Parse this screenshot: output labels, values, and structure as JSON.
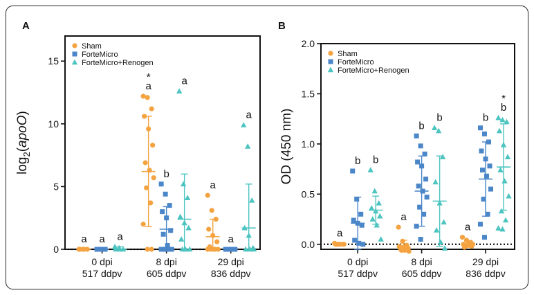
{
  "chart_data": [
    {
      "panel": "A",
      "type": "scatter",
      "ylabel_base": "log",
      "ylabel_sub": "2",
      "ylabel_gene": "apoO",
      "ylim": [
        0,
        17
      ],
      "yticks": [
        0,
        5,
        10,
        15
      ],
      "groups": [
        {
          "line1": "0 dpi",
          "line2": "517 ddpv"
        },
        {
          "line1": "8 dpi",
          "line2": "605 ddpv"
        },
        {
          "line1": "29 dpi",
          "line2": "836 ddpv"
        }
      ],
      "series": [
        {
          "name": "Sham",
          "marker": "circle",
          "color": "#F4A340",
          "groups": [
            {
              "mean": 0,
              "sd": 0,
              "label": "a",
              "star": false,
              "points": [
                0,
                0,
                0,
                0,
                0
              ]
            },
            {
              "mean": 6.2,
              "sd": 4.4,
              "label": "a",
              "star": true,
              "points": [
                12.2,
                12.1,
                11.2,
                10.6,
                9.6,
                8.3,
                6.9,
                6.3,
                5.7,
                4.9,
                3.7,
                2.0,
                0,
                0
              ]
            },
            {
              "mean": 1.0,
              "sd": 1.4,
              "label": "a",
              "star": false,
              "points": [
                4.3,
                3.1,
                2.4,
                1.6,
                1.1,
                0.6,
                0.2,
                0,
                0,
                0,
                0,
                0
              ]
            }
          ]
        },
        {
          "name": "ForteMicro",
          "marker": "square",
          "color": "#4A86C8",
          "groups": [
            {
              "mean": 0,
              "sd": 0,
              "label": "a",
              "star": false,
              "points": [
                0,
                0,
                0,
                0,
                0
              ]
            },
            {
              "mean": 1.6,
              "sd": 1.8,
              "label": "b",
              "star": false,
              "points": [
                5.2,
                4.4,
                3.5,
                3.0,
                2.5,
                1.5,
                1.2,
                0.3,
                0,
                0,
                0,
                0
              ]
            },
            {
              "mean": 0,
              "sd": 0,
              "label": "a",
              "star": false,
              "points": [
                0,
                0,
                0,
                0,
                0,
                0,
                0,
                0
              ]
            }
          ]
        },
        {
          "name": "ForteMicro+Renogen",
          "marker": "triangle",
          "color": "#4CC4C0",
          "groups": [
            {
              "mean": 0,
              "sd": 0.2,
              "label": "a",
              "star": false,
              "points": [
                0.2,
                0.1,
                0,
                0,
                0
              ]
            },
            {
              "mean": 2.4,
              "sd": 3.6,
              "label": "a",
              "star": false,
              "points": [
                12.6,
                5.2,
                4.1,
                2.6,
                2.1,
                1.7,
                0.8,
                0,
                0,
                0
              ]
            },
            {
              "mean": 1.7,
              "sd": 3.5,
              "label": "a",
              "star": false,
              "points": [
                9.9,
                8.2,
                3.9,
                1.7,
                1.1,
                0.1,
                0,
                0,
                0
              ]
            }
          ]
        }
      ]
    },
    {
      "panel": "B",
      "type": "scatter",
      "ylabel": "OD (450 nm)",
      "ylim": [
        -0.05,
        2.0
      ],
      "yticks": [
        0.0,
        0.5,
        1.0,
        1.5,
        2.0
      ],
      "groups": [
        {
          "line1": "0 dpi",
          "line2": "517 ddpv"
        },
        {
          "line1": "8 dpi",
          "line2": "605 ddpv"
        },
        {
          "line1": "29 dpi",
          "line2": "836 ddpv"
        }
      ],
      "series": [
        {
          "name": "Sham",
          "marker": "circle",
          "color": "#F4A340",
          "groups": [
            {
              "mean": 0.0,
              "sd": 0.01,
              "label": "a",
              "star": false,
              "points": [
                0.01,
                0.0,
                0.0,
                0.0,
                0.0,
                0.0,
                0.0
              ]
            },
            {
              "mean": -0.03,
              "sd": 0.07,
              "label": "a",
              "star": false,
              "points": [
                0.17,
                0.03,
                -0.01,
                -0.02,
                -0.03,
                -0.04,
                -0.05,
                -0.06,
                -0.07,
                -0.06,
                -0.05
              ]
            },
            {
              "mean": 0.0,
              "sd": 0.03,
              "label": "a",
              "star": false,
              "points": [
                0.07,
                0.04,
                0.02,
                0.0,
                -0.01,
                -0.02,
                -0.03,
                0.01,
                0.0
              ]
            }
          ]
        },
        {
          "name": "ForteMicro",
          "marker": "square",
          "color": "#4A86C8",
          "groups": [
            {
              "mean": 0.21,
              "sd": 0.26,
              "label": "b",
              "star": false,
              "points": [
                0.73,
                0.45,
                0.3,
                0.24,
                0.21,
                0.19,
                0.04,
                0.01,
                0.0
              ]
            },
            {
              "mean": 0.53,
              "sd": 0.35,
              "label": "b",
              "star": false,
              "points": [
                1.08,
                0.98,
                0.9,
                0.82,
                0.78,
                0.65,
                0.58,
                0.53,
                0.47,
                0.37,
                0.3,
                0.18,
                0.05
              ]
            },
            {
              "mean": 0.65,
              "sd": 0.37,
              "label": "b",
              "star": false,
              "points": [
                1.16,
                1.1,
                1.02,
                0.93,
                0.85,
                0.78,
                0.74,
                0.68,
                0.55,
                0.45,
                0.3,
                0.2,
                0.07
              ]
            }
          ]
        },
        {
          "name": "ForteMicro+Renogen",
          "marker": "triangle",
          "color": "#4CC4C0",
          "groups": [
            {
              "mean": 0.34,
              "sd": 0.14,
              "label": "b",
              "star": false,
              "points": [
                0.74,
                0.53,
                0.41,
                0.36,
                0.33,
                0.28,
                0.25,
                0.19,
                0.05
              ]
            },
            {
              "mean": 0.43,
              "sd": 0.45,
              "label": "b",
              "star": false,
              "points": [
                1.16,
                1.13,
                0.87,
                0.62,
                0.41,
                0.22,
                0.14,
                0.02,
                -0.04
              ]
            },
            {
              "mean": 0.77,
              "sd": 0.43,
              "label": "b",
              "star": true,
              "points": [
                1.26,
                1.24,
                1.22,
                1.13,
                0.99,
                0.87,
                0.74,
                0.63,
                0.48,
                0.33,
                0.24,
                0.16,
                0.15
              ]
            }
          ]
        }
      ]
    }
  ]
}
